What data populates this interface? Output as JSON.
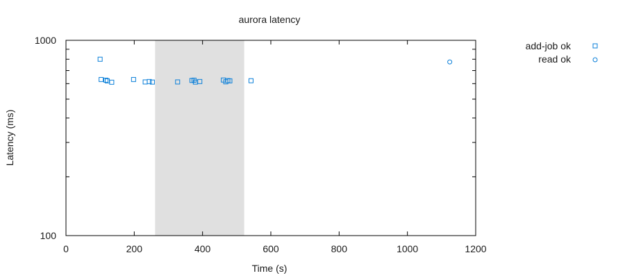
{
  "chart_data": {
    "type": "scatter",
    "title": "aurora latency",
    "xlabel": "Time (s)",
    "ylabel": "Latency (ms)",
    "xlim": [
      0,
      1200
    ],
    "ylim": [
      100,
      1000
    ],
    "yscale": "log",
    "x_ticks": [
      0,
      200,
      400,
      600,
      800,
      1000,
      1200
    ],
    "y_ticks": [
      100,
      1000
    ],
    "grid": false,
    "legend_position": "outside-top-right",
    "shaded_regions": [
      {
        "x_start": 261,
        "x_end": 522,
        "color": "#e0e0e0"
      }
    ],
    "series": [
      {
        "name": "add-job ok",
        "marker": "square",
        "color": "#0a7fd9",
        "points": [
          {
            "x": 100,
            "y": 800
          },
          {
            "x": 103,
            "y": 630
          },
          {
            "x": 117,
            "y": 625
          },
          {
            "x": 121,
            "y": 620
          },
          {
            "x": 134,
            "y": 610
          },
          {
            "x": 198,
            "y": 630
          },
          {
            "x": 232,
            "y": 612
          },
          {
            "x": 244,
            "y": 615
          },
          {
            "x": 253,
            "y": 611
          },
          {
            "x": 327,
            "y": 612
          },
          {
            "x": 369,
            "y": 623
          },
          {
            "x": 375,
            "y": 625
          },
          {
            "x": 379,
            "y": 611
          },
          {
            "x": 392,
            "y": 615
          },
          {
            "x": 461,
            "y": 626
          },
          {
            "x": 468,
            "y": 613
          },
          {
            "x": 474,
            "y": 622
          },
          {
            "x": 480,
            "y": 620
          },
          {
            "x": 542,
            "y": 621
          }
        ]
      },
      {
        "name": "read ok",
        "marker": "circle",
        "color": "#0a7fd9",
        "points": [
          {
            "x": 1124,
            "y": 775
          }
        ]
      }
    ]
  }
}
